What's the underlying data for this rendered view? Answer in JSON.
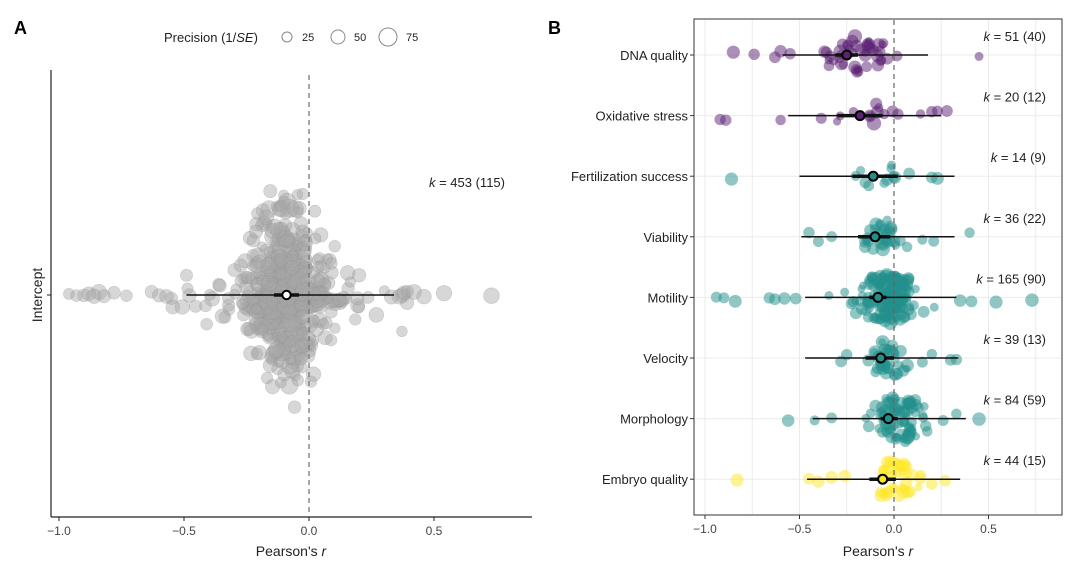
{
  "figure": {
    "legend": {
      "title_prefix": "Precision (1/",
      "title_italic": "SE",
      "title_suffix": ")",
      "sizes": [
        25,
        50,
        75
      ]
    }
  },
  "chart_data": [
    {
      "panel": "A",
      "type": "scatter",
      "subtype": "orchard-plot",
      "title": "",
      "xlabel": "Pearson's r",
      "ylabel": "Intercept",
      "xlim": [
        -1.05,
        0.9
      ],
      "xticks": [
        -1.0,
        -0.5,
        0.0,
        0.5
      ],
      "xtick_labels": [
        "−1.0",
        "−0.5",
        "0.0",
        "0.5"
      ],
      "grid": false,
      "reference_line": 0.0,
      "point_color": "#999999",
      "groups": [
        {
          "name": "Intercept",
          "k": 453,
          "studies": 115,
          "k_label": "k = 453 (115)",
          "estimate": -0.09,
          "ci": [
            -0.14,
            -0.04
          ],
          "pi": [
            -0.49,
            0.34
          ],
          "n_points": 453,
          "outliers": [
            {
              "r": -0.96,
              "precision": 12
            },
            {
              "r": -0.93,
              "precision": 14
            },
            {
              "r": -0.9,
              "precision": 18
            },
            {
              "r": -0.88,
              "precision": 22
            },
            {
              "r": -0.86,
              "precision": 26
            },
            {
              "r": -0.84,
              "precision": 30
            },
            {
              "r": -0.82,
              "precision": 20
            },
            {
              "r": -0.78,
              "precision": 18
            },
            {
              "r": -0.73,
              "precision": 14
            },
            {
              "r": -0.63,
              "precision": 18
            },
            {
              "r": -0.6,
              "precision": 20
            },
            {
              "r": -0.57,
              "precision": 22
            },
            {
              "r": -0.55,
              "precision": 16
            },
            {
              "r": 0.33,
              "precision": 24
            },
            {
              "r": 0.38,
              "precision": 22
            },
            {
              "r": 0.42,
              "precision": 28
            },
            {
              "r": 0.46,
              "precision": 26
            },
            {
              "r": 0.54,
              "precision": 30
            },
            {
              "r": 0.73,
              "precision": 32
            }
          ]
        }
      ]
    },
    {
      "panel": "B",
      "type": "scatter",
      "subtype": "orchard-plot",
      "title": "",
      "xlabel": "Pearson's r",
      "ylabel": "",
      "xlim": [
        -1.05,
        0.9
      ],
      "xticks": [
        -1.0,
        -0.5,
        0.0,
        0.5
      ],
      "xtick_labels": [
        "−1.0",
        "−0.5",
        "0.0",
        "0.5"
      ],
      "grid": true,
      "reference_line": 0.0,
      "groups": [
        {
          "name": "DNA quality",
          "k": 51,
          "studies": 40,
          "k_label": "k = 51 (40)",
          "estimate": -0.25,
          "ci": [
            -0.31,
            -0.19
          ],
          "pi": [
            -0.59,
            0.18
          ],
          "color": "#5B2174",
          "spread": 0.17,
          "n_points": 51,
          "outliers": [
            {
              "r": -0.85,
              "precision": 30
            },
            {
              "r": -0.74,
              "precision": 20
            },
            {
              "r": -0.63,
              "precision": 22
            },
            {
              "r": -0.6,
              "precision": 26
            },
            {
              "r": -0.55,
              "precision": 20
            },
            {
              "r": 0.45,
              "precision": 10
            }
          ]
        },
        {
          "name": "Oxidative stress",
          "k": 20,
          "studies": 12,
          "k_label": "k = 20 (12)",
          "estimate": -0.18,
          "ci": [
            -0.3,
            -0.06
          ],
          "pi": [
            -0.56,
            0.25
          ],
          "color": "#5B2174",
          "spread": 0.22,
          "n_points": 20,
          "outliers": [
            {
              "r": -0.92,
              "precision": 20
            },
            {
              "r": -0.89,
              "precision": 20
            },
            {
              "r": -0.6,
              "precision": 16
            },
            {
              "r": 0.2,
              "precision": 20
            },
            {
              "r": 0.23,
              "precision": 18
            },
            {
              "r": 0.28,
              "precision": 22
            }
          ]
        },
        {
          "name": "Fertilization success",
          "k": 14,
          "studies": 9,
          "k_label": "k = 14 (9)",
          "estimate": -0.11,
          "ci": [
            -0.22,
            0.02
          ],
          "pi": [
            -0.5,
            0.32
          ],
          "color": "#21908C",
          "spread": 0.08,
          "n_points": 14,
          "outliers": [
            {
              "r": -0.86,
              "precision": 30
            },
            {
              "r": 0.2,
              "precision": 22
            },
            {
              "r": 0.23,
              "precision": 28
            },
            {
              "r": 0.08,
              "precision": 22
            }
          ]
        },
        {
          "name": "Viability",
          "k": 36,
          "studies": 22,
          "k_label": "k = 36 (22)",
          "estimate": -0.1,
          "ci": [
            -0.19,
            -0.02
          ],
          "pi": [
            -0.49,
            0.32
          ],
          "color": "#21908C",
          "spread": 0.12,
          "n_points": 36,
          "outliers": [
            {
              "r": -0.45,
              "precision": 20
            },
            {
              "r": -0.4,
              "precision": 18
            },
            {
              "r": -0.33,
              "precision": 18
            },
            {
              "r": 0.15,
              "precision": 14
            },
            {
              "r": 0.21,
              "precision": 18
            },
            {
              "r": 0.4,
              "precision": 16
            }
          ]
        },
        {
          "name": "Motility",
          "k": 165,
          "studies": 90,
          "k_label": "k = 165 (90)",
          "estimate": -0.085,
          "ci": [
            -0.13,
            -0.04
          ],
          "pi": [
            -0.47,
            0.33
          ],
          "color": "#21908C",
          "spread": 0.14,
          "n_points": 165,
          "outliers": [
            {
              "r": -0.94,
              "precision": 18
            },
            {
              "r": -0.9,
              "precision": 18
            },
            {
              "r": -0.84,
              "precision": 28
            },
            {
              "r": -0.66,
              "precision": 20
            },
            {
              "r": -0.63,
              "precision": 22
            },
            {
              "r": -0.58,
              "precision": 26
            },
            {
              "r": -0.52,
              "precision": 22
            },
            {
              "r": 0.35,
              "precision": 26
            },
            {
              "r": 0.41,
              "precision": 22
            },
            {
              "r": 0.54,
              "precision": 30
            },
            {
              "r": 0.73,
              "precision": 32
            }
          ]
        },
        {
          "name": "Velocity",
          "k": 39,
          "studies": 13,
          "k_label": "k = 39 (13)",
          "estimate": -0.07,
          "ci": [
            -0.15,
            0.0
          ],
          "pi": [
            -0.47,
            0.34
          ],
          "color": "#21908C",
          "spread": 0.09,
          "n_points": 39,
          "outliers": [
            {
              "r": -0.28,
              "precision": 22
            },
            {
              "r": -0.25,
              "precision": 20
            },
            {
              "r": 0.15,
              "precision": 18
            },
            {
              "r": 0.2,
              "precision": 16
            },
            {
              "r": 0.3,
              "precision": 22
            },
            {
              "r": 0.33,
              "precision": 20
            }
          ]
        },
        {
          "name": "Morphology",
          "k": 84,
          "studies": 59,
          "k_label": "k = 84 (59)",
          "estimate": -0.03,
          "ci": [
            -0.07,
            0.02
          ],
          "pi": [
            -0.43,
            0.38
          ],
          "color": "#21908C",
          "spread": 0.11,
          "n_points": 84,
          "outliers": [
            {
              "r": -0.56,
              "precision": 26
            },
            {
              "r": -0.42,
              "precision": 14
            },
            {
              "r": -0.33,
              "precision": 18
            },
            {
              "r": 0.26,
              "precision": 18
            },
            {
              "r": 0.33,
              "precision": 16
            },
            {
              "r": 0.45,
              "precision": 32
            }
          ]
        },
        {
          "name": "Embryo quality",
          "k": 44,
          "studies": 15,
          "k_label": "k = 44 (15)",
          "estimate": -0.06,
          "ci": [
            -0.13,
            0.01
          ],
          "pi": [
            -0.46,
            0.35
          ],
          "color": "#FDE725",
          "spread": 0.1,
          "n_points": 44,
          "outliers": [
            {
              "r": -0.83,
              "precision": 30
            },
            {
              "r": -0.45,
              "precision": 22
            },
            {
              "r": -0.4,
              "precision": 26
            },
            {
              "r": -0.33,
              "precision": 28
            },
            {
              "r": -0.26,
              "precision": 26
            },
            {
              "r": 0.14,
              "precision": 22
            },
            {
              "r": 0.2,
              "precision": 22
            },
            {
              "r": 0.27,
              "precision": 22
            }
          ]
        }
      ]
    }
  ]
}
